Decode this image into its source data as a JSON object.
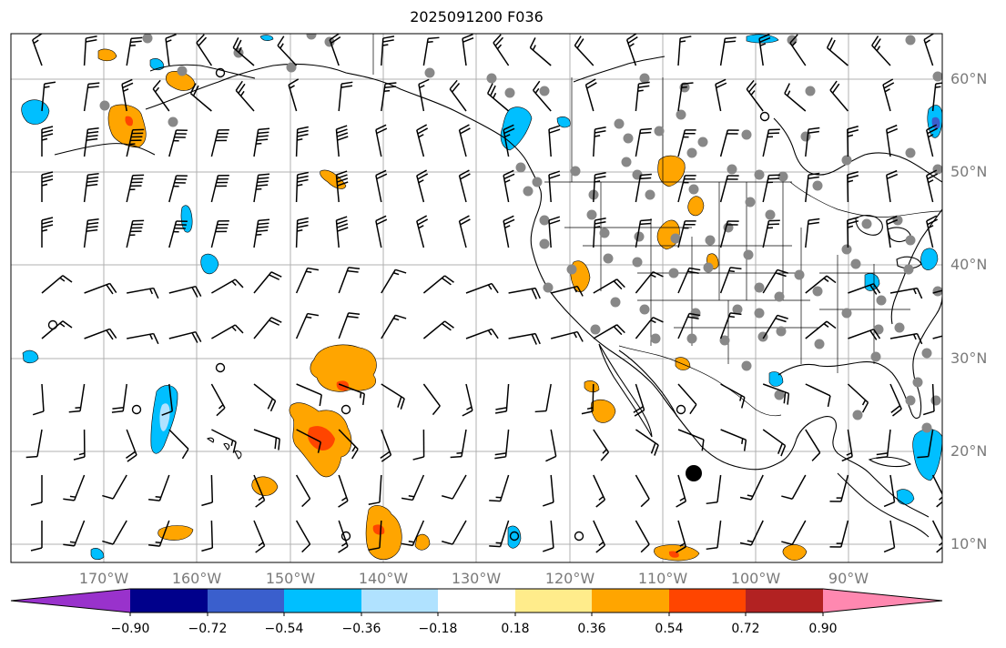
{
  "title": "2025091200 F036",
  "lat_labels": [
    "60°N",
    "50°N",
    "40°N",
    "30°N",
    "20°N",
    "10°N"
  ],
  "lon_labels": [
    "170°W",
    "160°W",
    "150°W",
    "140°W",
    "130°W",
    "120°W",
    "110°W",
    "100°W",
    "90°W"
  ],
  "colorbar": {
    "colors": [
      "#9932CC",
      "#00008B",
      "#3A5FCD",
      "#00BFFF",
      "#B0E2FF",
      "#FFFFFF",
      "#FFEC8B",
      "#FFA500",
      "#FF4500",
      "#B22222",
      "#FF88B0"
    ],
    "tick_labels": [
      "−0.90",
      "−0.72",
      "−0.54",
      "−0.36",
      "−0.18",
      "0.18",
      "0.36",
      "0.54",
      "0.72",
      "0.90"
    ],
    "extend": "both"
  },
  "map": {
    "projection": "plate carree",
    "lon_range": [
      -180,
      -80
    ],
    "lat_range": [
      7,
      64
    ],
    "gridlines": true,
    "features": [
      "coastlines",
      "country borders",
      "state borders",
      "wind barbs",
      "station markers",
      "shaded contours"
    ]
  }
}
